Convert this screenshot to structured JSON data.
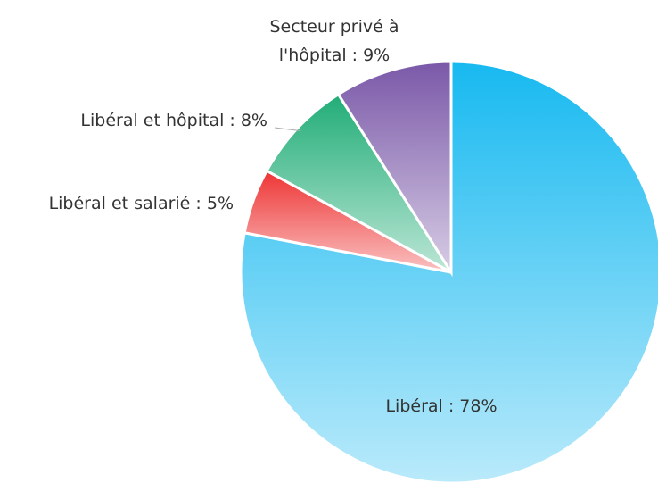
{
  "chart_data": {
    "type": "pie",
    "categories": [
      "Libéral : 78%",
      "Libéral et salarié : 5%",
      "Libéral et hôpital : 8%",
      "Secteur privé à\nl'hôpital : 9%"
    ],
    "values": [
      78,
      5,
      8,
      9
    ],
    "colors": [
      "#17b9f0",
      "#ee3434",
      "#21ad77",
      "#7a58a8"
    ]
  }
}
